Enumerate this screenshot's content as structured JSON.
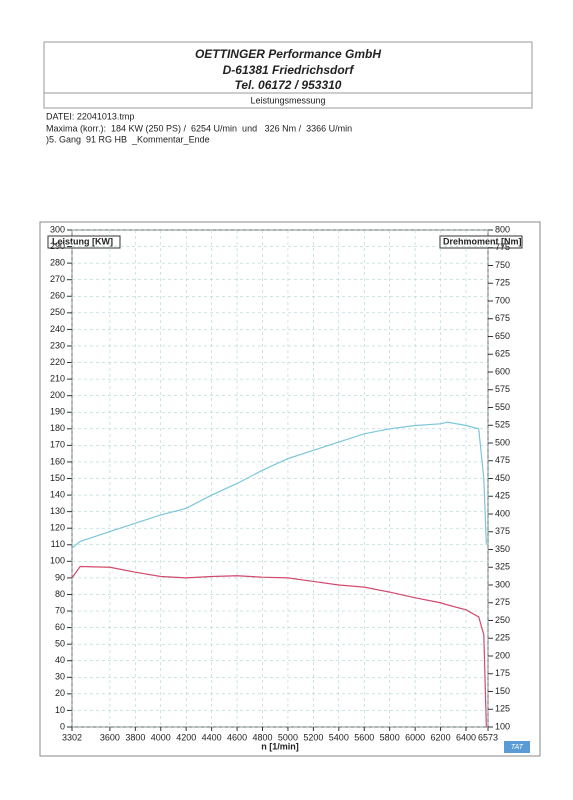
{
  "header": {
    "company": "OETTINGER  Performance  GmbH",
    "address": "D-61381 Friedrichsdorf",
    "phone": "Tel.  06172 / 953310",
    "subtitle": "Leistungsmessung"
  },
  "info": [
    "DATEI: 22041013.tmp",
    "Maxima (korr.):  184 KW (250 PS) /  6254 U/min  und   326 Nm /  3366 U/min",
    ")5. Gang  91 RG HB  _Kommentar_Ende"
  ],
  "logo": "TAT",
  "chart_data": {
    "type": "line",
    "y_label": "Leistung [KW]",
    "y2_label": "Drehmoment [Nm]",
    "x_label": "n [1/min]",
    "x": [
      3302,
      3366,
      3600,
      3800,
      4000,
      4200,
      4400,
      4600,
      4800,
      5000,
      5200,
      5400,
      5600,
      5800,
      6000,
      6200,
      6254,
      6400,
      6500,
      6540,
      6560
    ],
    "series": [
      {
        "name": "Leistung",
        "color": "#7cc6dc",
        "values": [
          108,
          112,
          118,
          123,
          128,
          132,
          140,
          147,
          155,
          162,
          167,
          172,
          177,
          180,
          182,
          183,
          184,
          182,
          180,
          150,
          110
        ]
      },
      {
        "name": "Drehmoment",
        "color": "#d24a6c",
        "axis": "y2",
        "values": [
          310,
          326,
          325,
          318,
          312,
          310,
          312,
          313,
          311,
          310,
          305,
          300,
          297,
          290,
          282,
          275,
          272,
          265,
          255,
          230,
          100
        ]
      }
    ],
    "xlim": [
      3302,
      6573
    ],
    "xticks": [
      3302,
      3600,
      3800,
      4000,
      4200,
      4400,
      4600,
      4800,
      5000,
      5200,
      5400,
      5600,
      5800,
      6000,
      6200,
      6400,
      6573
    ],
    "ylim": [
      0,
      300
    ],
    "yticks": [
      0,
      10,
      20,
      30,
      40,
      50,
      60,
      70,
      80,
      90,
      100,
      110,
      120,
      130,
      140,
      150,
      160,
      170,
      180,
      190,
      200,
      210,
      220,
      230,
      240,
      250,
      260,
      270,
      280,
      290,
      300
    ],
    "y2lim": [
      100,
      800
    ],
    "y2ticks": [
      100,
      125,
      150,
      175,
      200,
      225,
      250,
      275,
      300,
      325,
      350,
      375,
      400,
      425,
      450,
      475,
      500,
      525,
      550,
      575,
      600,
      625,
      650,
      675,
      700,
      725,
      750,
      775,
      800
    ],
    "grid": true
  }
}
